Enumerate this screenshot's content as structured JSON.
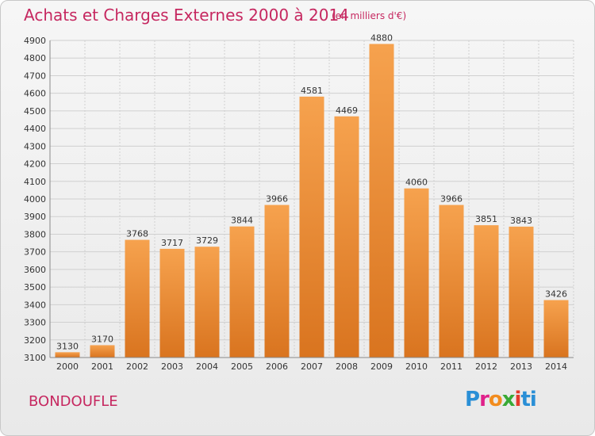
{
  "header": {
    "title": "Achats et Charges Externes 2000 à 2014",
    "unit": "(en milliers d'€)"
  },
  "footer": {
    "commune": "BONDOUFLE",
    "logo": [
      "P",
      "r",
      "o",
      "x",
      "i",
      "ti"
    ]
  },
  "colors": {
    "bar_top": "#f6a24e",
    "bar_bottom": "#d9741f",
    "title": "#c62860"
  },
  "chart_data": {
    "type": "bar",
    "title": "Achats et Charges Externes 2000 à 2014",
    "xlabel": "",
    "ylabel": "",
    "categories": [
      "2000",
      "2001",
      "2002",
      "2003",
      "2004",
      "2005",
      "2006",
      "2007",
      "2008",
      "2009",
      "2010",
      "2011",
      "2012",
      "2013",
      "2014"
    ],
    "values": [
      3130,
      3170,
      3768,
      3717,
      3729,
      3844,
      3966,
      4581,
      4469,
      4880,
      4060,
      3966,
      3851,
      3843,
      3426
    ],
    "ylim": [
      3100,
      4900
    ],
    "yticks": [
      3100,
      3200,
      3300,
      3400,
      3500,
      3600,
      3700,
      3800,
      3900,
      4000,
      4100,
      4200,
      4300,
      4400,
      4500,
      4600,
      4700,
      4800,
      4900
    ],
    "grid": true,
    "legend": "none"
  }
}
